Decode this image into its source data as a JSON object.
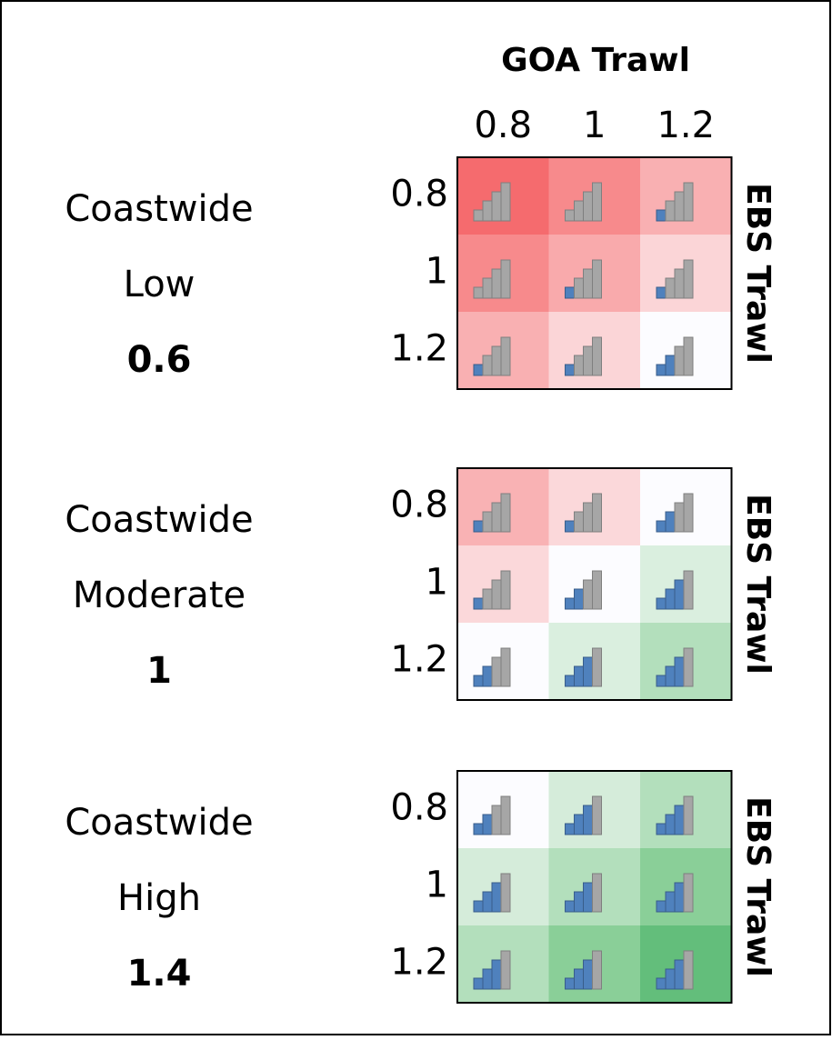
{
  "column_header": "GOA Trawl",
  "column_labels": [
    "0.8",
    "1",
    "1.2"
  ],
  "panels": [
    {
      "labels": [
        "Coastwide",
        "Low",
        "0.6"
      ],
      "row_header": "EBS Trawl",
      "row_labels": [
        "0.8",
        "1",
        "1.2"
      ],
      "cells": [
        [
          {
            "blue_bars": 0,
            "color": "#f56b6e"
          },
          {
            "blue_bars": 0,
            "color": "#f78a8c"
          },
          {
            "blue_bars": 1,
            "color": "#f9b0b2"
          }
        ],
        [
          {
            "blue_bars": 0,
            "color": "#f78a8c"
          },
          {
            "blue_bars": 1,
            "color": "#f9aaac"
          },
          {
            "blue_bars": 1,
            "color": "#fbd5d7"
          }
        ],
        [
          {
            "blue_bars": 1,
            "color": "#f9b0b2"
          },
          {
            "blue_bars": 1,
            "color": "#fbd5d7"
          },
          {
            "blue_bars": 2,
            "color": "#fcfcff"
          }
        ]
      ]
    },
    {
      "labels": [
        "Coastwide",
        "Moderate",
        "1"
      ],
      "row_header": "EBS Trawl",
      "row_labels": [
        "0.8",
        "1",
        "1.2"
      ],
      "cells": [
        [
          {
            "blue_bars": 1,
            "color": "#f9b2b4"
          },
          {
            "blue_bars": 1,
            "color": "#fbd8da"
          },
          {
            "blue_bars": 2,
            "color": "#fcfcff"
          }
        ],
        [
          {
            "blue_bars": 1,
            "color": "#fbd8da"
          },
          {
            "blue_bars": 2,
            "color": "#fcfcff"
          },
          {
            "blue_bars": 3,
            "color": "#daefdf"
          }
        ],
        [
          {
            "blue_bars": 2,
            "color": "#fcfcff"
          },
          {
            "blue_bars": 3,
            "color": "#daefdf"
          },
          {
            "blue_bars": 3,
            "color": "#b3dfbc"
          }
        ]
      ]
    },
    {
      "labels": [
        "Coastwide",
        "High",
        "1.4"
      ],
      "row_header": "EBS Trawl",
      "row_labels": [
        "0.8",
        "1",
        "1.2"
      ],
      "cells": [
        [
          {
            "blue_bars": 2,
            "color": "#fcfcff"
          },
          {
            "blue_bars": 3,
            "color": "#d5ecda"
          },
          {
            "blue_bars": 3,
            "color": "#b3dfbc"
          }
        ],
        [
          {
            "blue_bars": 3,
            "color": "#d5ecda"
          },
          {
            "blue_bars": 3,
            "color": "#b3dfbc"
          },
          {
            "blue_bars": 3,
            "color": "#8acf98"
          }
        ],
        [
          {
            "blue_bars": 3,
            "color": "#b3dfbc"
          },
          {
            "blue_bars": 3,
            "color": "#8acf98"
          },
          {
            "blue_bars": 3,
            "color": "#63be7b"
          }
        ]
      ]
    }
  ]
}
